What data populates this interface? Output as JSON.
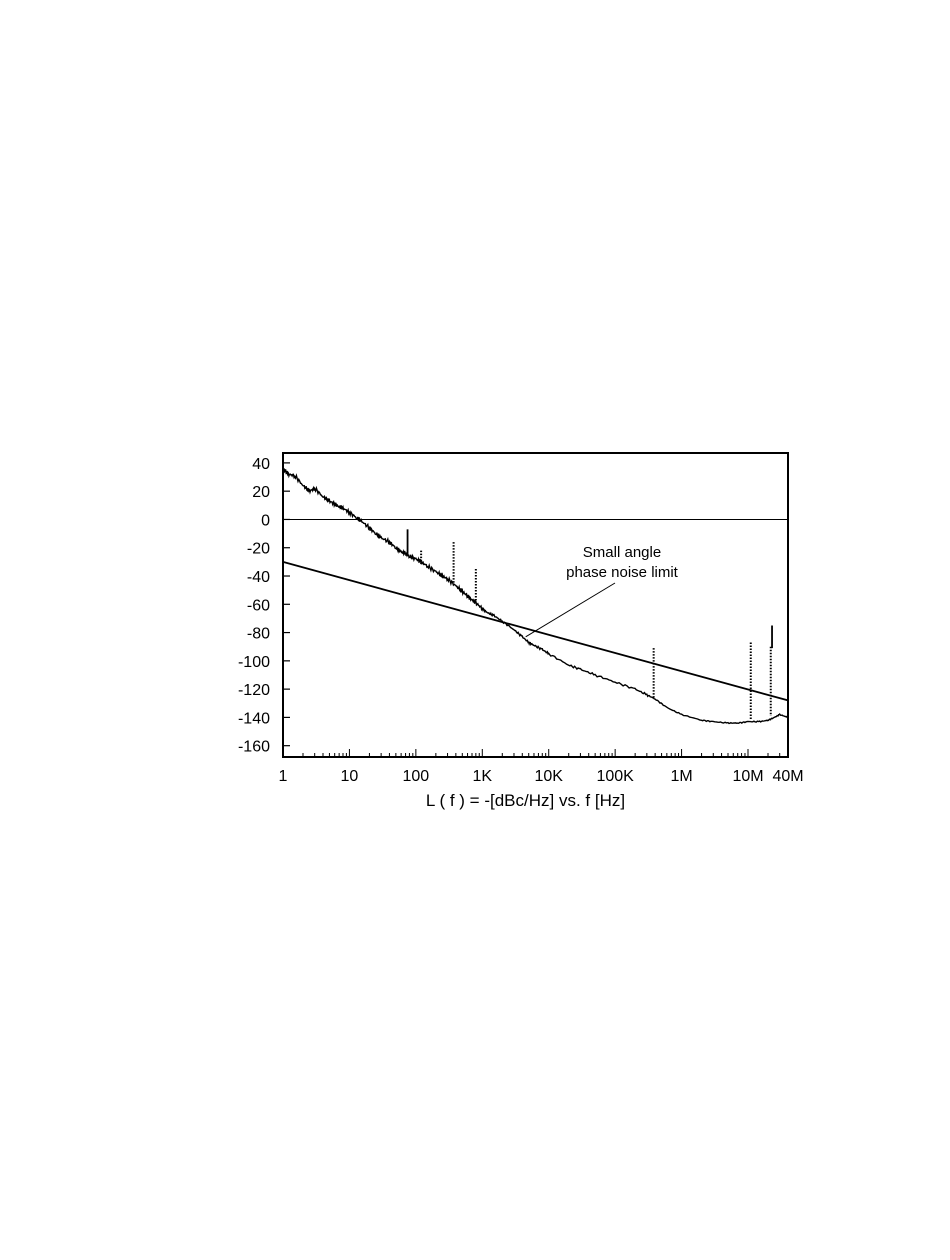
{
  "chart_data": {
    "type": "line",
    "title": "",
    "xlabel": "L ( f ) = -[dBc/Hz] vs. f [Hz]",
    "ylabel": "",
    "x_scale": "log",
    "xlim": [
      1,
      40000000
    ],
    "ylim": [
      -168,
      47
    ],
    "grid": false,
    "x_ticks": [
      {
        "value": 1,
        "label": "1"
      },
      {
        "value": 10,
        "label": "10"
      },
      {
        "value": 100,
        "label": "100"
      },
      {
        "value": 1000,
        "label": "1K"
      },
      {
        "value": 10000,
        "label": "10K"
      },
      {
        "value": 100000,
        "label": "100K"
      },
      {
        "value": 1000000,
        "label": "1M"
      },
      {
        "value": 10000000,
        "label": "10M"
      },
      {
        "value": 40000000,
        "label": "40M"
      }
    ],
    "y_ticks": [
      {
        "value": 40,
        "label": "40"
      },
      {
        "value": 20,
        "label": "20"
      },
      {
        "value": 0,
        "label": "0"
      },
      {
        "value": -20,
        "label": "-20"
      },
      {
        "value": -40,
        "label": "-40"
      },
      {
        "value": -60,
        "label": "-60"
      },
      {
        "value": -80,
        "label": "-80"
      },
      {
        "value": -100,
        "label": "-100"
      },
      {
        "value": -120,
        "label": "-120"
      },
      {
        "value": -140,
        "label": "-140"
      },
      {
        "value": -160,
        "label": "-160"
      }
    ],
    "reference_line": {
      "y": 0
    },
    "series": [
      {
        "x": [
          1,
          1.2,
          1.5,
          2,
          2.5,
          3,
          4,
          5,
          6,
          7,
          8,
          10,
          13,
          15,
          20,
          25,
          30,
          40,
          50,
          60,
          70,
          80,
          100,
          120,
          150,
          200,
          250,
          300,
          400,
          500,
          600,
          700,
          800,
          1000,
          1200,
          1500,
          2000,
          3000,
          4000,
          5000,
          6000,
          8000,
          10000,
          20000,
          30000,
          50000,
          100000,
          200000,
          300000,
          400000,
          600000,
          1000000,
          2000000,
          3000000,
          5000000,
          7000000,
          10000000,
          15000000,
          20000000,
          25000000,
          30000000,
          40000000
        ],
        "y": [
          36,
          32,
          31,
          24,
          20,
          22,
          16,
          13,
          11,
          9,
          8,
          5,
          1,
          -1,
          -6,
          -10,
          -13,
          -16,
          -20,
          -23,
          -24,
          -26,
          -28,
          -30,
          -33,
          -37,
          -40,
          -42,
          -47,
          -51,
          -54,
          -57,
          -59,
          -63,
          -66,
          -68,
          -72,
          -78,
          -83,
          -87,
          -89,
          -92,
          -95,
          -103,
          -106,
          -110,
          -115,
          -120,
          -124,
          -127,
          -133,
          -138,
          -142,
          -143,
          -144,
          -144,
          -143,
          -143,
          -142,
          -140,
          -138,
          -140
        ]
      },
      {
        "name": "Small angle phase noise limit",
        "x": [
          1,
          40000000
        ],
        "y": [
          -30,
          -128
        ]
      }
    ],
    "spurs": [
      {
        "x": 75,
        "y_top": -7,
        "y_bottom": -26,
        "style": "solid"
      },
      {
        "x": 120,
        "y_top": -22,
        "y_bottom": -32,
        "style": "dotted"
      },
      {
        "x": 370,
        "y_top": -16,
        "y_bottom": -46,
        "style": "dotted"
      },
      {
        "x": 800,
        "y_top": -35,
        "y_bottom": -58,
        "style": "dotted"
      },
      {
        "x": 380000,
        "y_top": -91,
        "y_bottom": -127,
        "style": "dotted"
      },
      {
        "x": 11000000,
        "y_top": -87,
        "y_bottom": -142,
        "style": "dotted"
      },
      {
        "x": 22000000,
        "y_top": -90,
        "y_bottom": -139,
        "style": "dotted"
      },
      {
        "x": 23000000,
        "y_top": -75,
        "y_bottom": -91,
        "style": "solid"
      }
    ],
    "annotations": [
      {
        "lines": [
          "Small angle",
          "phase noise limit"
        ],
        "target_x": 4500,
        "target_y": -83
      }
    ]
  }
}
